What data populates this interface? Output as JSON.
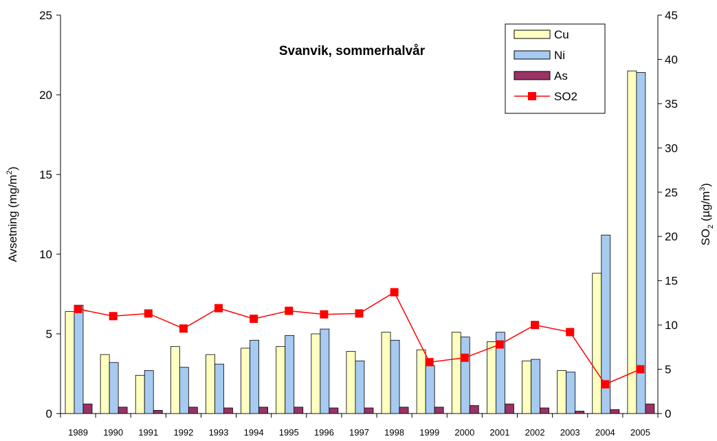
{
  "chart_data": {
    "type": "bar_line",
    "title": "Svanvik, sommerhalvår",
    "ylabel": {
      "text": "Avsetning (mg/m",
      "sup": "2",
      "end": ")"
    },
    "y2label": {
      "text": "SO",
      "sub": "2",
      "mid": " (µg/m",
      "sup": "3",
      "end": ")"
    },
    "categories": [
      "1989",
      "1990",
      "1991",
      "1992",
      "1993",
      "1994",
      "1995",
      "1996",
      "1997",
      "1998",
      "1999",
      "2000",
      "2001",
      "2002",
      "2003",
      "2004",
      "2005"
    ],
    "series": [
      {
        "name": "Cu",
        "color": "#ffffc0",
        "type": "bar",
        "values": [
          6.4,
          3.7,
          2.4,
          4.2,
          3.7,
          4.1,
          4.2,
          5.0,
          3.9,
          5.1,
          4.0,
          5.1,
          4.5,
          3.3,
          2.7,
          8.8,
          21.5
        ]
      },
      {
        "name": "Ni",
        "color": "#a6caf0",
        "type": "bar",
        "values": [
          6.8,
          3.2,
          2.7,
          2.9,
          3.1,
          4.6,
          4.9,
          5.3,
          3.3,
          4.6,
          3.0,
          4.8,
          5.1,
          3.4,
          2.6,
          11.2,
          21.4
        ]
      },
      {
        "name": "As",
        "color": "#993366",
        "type": "bar",
        "values": [
          0.6,
          0.4,
          0.2,
          0.4,
          0.35,
          0.4,
          0.4,
          0.35,
          0.35,
          0.4,
          0.4,
          0.5,
          0.6,
          0.35,
          0.15,
          0.25,
          0.6
        ]
      },
      {
        "name": "SO2",
        "color": "#ff0000",
        "type": "line",
        "axis": "y2",
        "values": [
          11.8,
          11.0,
          11.3,
          9.6,
          11.9,
          10.7,
          11.6,
          11.2,
          11.3,
          13.7,
          5.8,
          6.3,
          7.8,
          10.0,
          9.2,
          3.3,
          5.0
        ]
      }
    ],
    "ylim": [
      0,
      25
    ],
    "yticks": [
      0,
      5,
      10,
      15,
      20,
      25
    ],
    "y2lim": [
      0,
      45
    ],
    "y2ticks": [
      0,
      5,
      10,
      15,
      20,
      25,
      30,
      35,
      40,
      45
    ],
    "grid": false,
    "legend": "top-right"
  }
}
